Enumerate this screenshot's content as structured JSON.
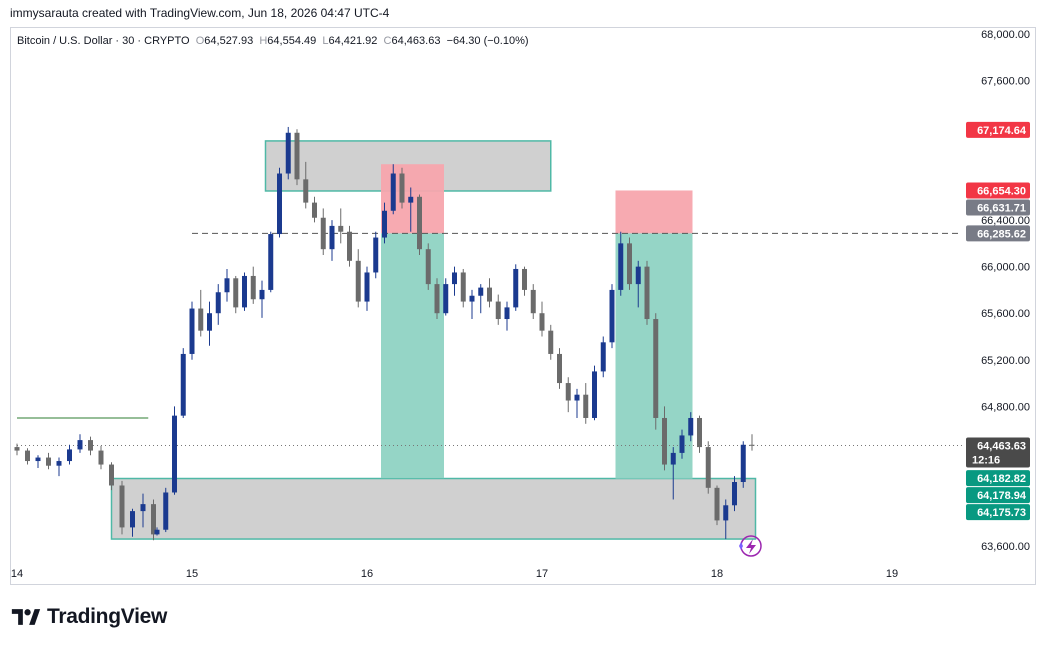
{
  "header": {
    "credit": "immysarauta created with TradingView.com, Jun 18, 2026 04:47 UTC-4"
  },
  "legend": {
    "symbol": "Bitcoin / U.S. Dollar · 30 · CRYPTO",
    "open_label": "O",
    "open": "64,527.93",
    "high_label": "H",
    "high": "64,554.49",
    "low_label": "L",
    "low": "64,421.92",
    "close_label": "C",
    "close": "64,463.63",
    "change": "−64.30 (−0.10%)"
  },
  "brand": {
    "name": "TradingView",
    "logo_icon": "tradingview-logo-icon"
  },
  "colors": {
    "up": "#1b3a8f",
    "down": "#6b6b6b",
    "zone_fill": "#c8c8c8",
    "zone_border": "#4fb8a6",
    "target_fill": "#8fd3c3",
    "stop_fill": "#f7a5ad",
    "red_tag": "#f23645",
    "gray_tag": "#787b86",
    "green_tag": "#089981",
    "dark_tag": "#4a4a4a"
  },
  "chart_data": {
    "type": "candlestick",
    "title": "Bitcoin / U.S. Dollar · 30 · CRYPTO",
    "ylim": [
      63480,
      68050
    ],
    "xlim": [
      14.0,
      19.8
    ],
    "y_ticks": [
      "68,000.00",
      "67,600.00",
      "66,400.00",
      "66,000.00",
      "65,600.00",
      "65,200.00",
      "64,800.00",
      "63,600.00"
    ],
    "y_tick_values": [
      68000,
      67600,
      66400,
      66000,
      65600,
      65200,
      64800,
      63600
    ],
    "x_ticks": [
      "14",
      "15",
      "16",
      "17",
      "18",
      "19"
    ],
    "x_tick_values": [
      14,
      15,
      16,
      17,
      18,
      19
    ],
    "price_tags": [
      {
        "label": "67,174.64",
        "value": 67174.64,
        "color": "red"
      },
      {
        "label": "66,654.30",
        "value": 66654.3,
        "color": "red"
      },
      {
        "label": "66,631.71",
        "value": 66631.71,
        "color": "gray"
      },
      {
        "label": "66,285.62",
        "value": 66285.62,
        "color": "gray"
      },
      {
        "label": "64,463.63",
        "sublabel": "12:16",
        "value": 64463.63,
        "color": "dark"
      },
      {
        "label": "64,182.82",
        "value": 64182.82,
        "color": "green"
      },
      {
        "label": "64,178.94",
        "value": 64178.94,
        "color": "green"
      },
      {
        "label": "64,175.73",
        "value": 64175.73,
        "color": "green"
      }
    ],
    "horizontal_lines": [
      {
        "value": 66285.62,
        "from_x": 15.0,
        "to_x": 19.5,
        "style": "dashed"
      },
      {
        "value": 64463.63,
        "from_x": 14.0,
        "to_x": 19.8,
        "style": "dotted"
      },
      {
        "value": 64700,
        "from_x": 14.0,
        "to_x": 14.75,
        "style": "solid"
      }
    ],
    "zones": [
      {
        "kind": "supply",
        "x0": 15.42,
        "x1": 17.05,
        "y0": 66650,
        "y1": 67080
      },
      {
        "kind": "demand",
        "x0": 14.54,
        "x1": 18.22,
        "y0": 63660,
        "y1": 64180
      }
    ],
    "positions": [
      {
        "kind": "short",
        "x0": 16.08,
        "x1": 16.44,
        "entry": 66285.62,
        "stop": 66880,
        "target": 64182.82
      },
      {
        "kind": "short",
        "x0": 17.42,
        "x1": 17.86,
        "entry": 66285.62,
        "stop": 66654.3,
        "target": 64178.94
      }
    ],
    "candles": [
      [
        14.0,
        64450,
        64480,
        64380,
        64420
      ],
      [
        14.06,
        64420,
        64440,
        64300,
        64330
      ],
      [
        14.12,
        64330,
        64380,
        64270,
        64360
      ],
      [
        14.18,
        64360,
        64400,
        64260,
        64290
      ],
      [
        14.24,
        64290,
        64360,
        64200,
        64330
      ],
      [
        14.3,
        64330,
        64470,
        64300,
        64430
      ],
      [
        14.36,
        64430,
        64560,
        64400,
        64510
      ],
      [
        14.42,
        64510,
        64540,
        64380,
        64420
      ],
      [
        14.48,
        64420,
        64460,
        64260,
        64300
      ],
      [
        14.54,
        64300,
        64320,
        64080,
        64120
      ],
      [
        14.6,
        64120,
        64160,
        63700,
        63760
      ],
      [
        14.66,
        63760,
        63920,
        63680,
        63900
      ],
      [
        14.72,
        63900,
        64050,
        63760,
        63960
      ],
      [
        14.78,
        63960,
        64000,
        63650,
        63700
      ],
      [
        14.8,
        63700,
        63760,
        63690,
        63740
      ],
      [
        14.85,
        63740,
        64100,
        63720,
        64060
      ],
      [
        14.9,
        64060,
        64800,
        64040,
        64720
      ],
      [
        14.95,
        64720,
        65300,
        64700,
        65250
      ],
      [
        15.0,
        65250,
        65700,
        65200,
        65640
      ],
      [
        15.05,
        65640,
        65800,
        65400,
        65450
      ],
      [
        15.1,
        65450,
        65700,
        65320,
        65600
      ],
      [
        15.15,
        65600,
        65850,
        65500,
        65780
      ],
      [
        15.2,
        65780,
        65980,
        65700,
        65900
      ],
      [
        15.25,
        65900,
        65920,
        65600,
        65650
      ],
      [
        15.3,
        65650,
        65950,
        65620,
        65920
      ],
      [
        15.35,
        65920,
        66000,
        65680,
        65720
      ],
      [
        15.4,
        65720,
        65880,
        65560,
        65800
      ],
      [
        15.45,
        65800,
        66300,
        65780,
        66280
      ],
      [
        15.5,
        66280,
        66850,
        66250,
        66800
      ],
      [
        15.55,
        66800,
        67200,
        66750,
        67150
      ],
      [
        15.6,
        67150,
        67180,
        66700,
        66750
      ],
      [
        15.65,
        66750,
        66900,
        66500,
        66550
      ],
      [
        15.7,
        66550,
        66600,
        66380,
        66420
      ],
      [
        15.75,
        66420,
        66500,
        66100,
        66150
      ],
      [
        15.8,
        66150,
        66400,
        66050,
        66350
      ],
      [
        15.85,
        66350,
        66500,
        66200,
        66300
      ],
      [
        15.9,
        66300,
        66350,
        66000,
        66050
      ],
      [
        15.95,
        66050,
        66150,
        65650,
        65700
      ],
      [
        16.0,
        65700,
        66000,
        65620,
        65950
      ],
      [
        16.05,
        65950,
        66300,
        65900,
        66250
      ],
      [
        16.1,
        66250,
        66550,
        66200,
        66480
      ],
      [
        16.15,
        66480,
        66880,
        66450,
        66800
      ],
      [
        16.2,
        66800,
        66850,
        66500,
        66550
      ],
      [
        16.25,
        66550,
        66680,
        66300,
        66600
      ],
      [
        16.3,
        66600,
        66620,
        66100,
        66150
      ],
      [
        16.35,
        66150,
        66200,
        65800,
        65850
      ],
      [
        16.4,
        65850,
        65900,
        65550,
        65600
      ],
      [
        16.45,
        65600,
        65900,
        65580,
        65850
      ],
      [
        16.5,
        65850,
        66000,
        65750,
        65950
      ],
      [
        16.55,
        65950,
        65980,
        65650,
        65700
      ],
      [
        16.6,
        65700,
        65800,
        65550,
        65750
      ],
      [
        16.65,
        65750,
        65850,
        65600,
        65820
      ],
      [
        16.7,
        65820,
        65900,
        65650,
        65700
      ],
      [
        16.75,
        65700,
        65760,
        65500,
        65550
      ],
      [
        16.8,
        65550,
        65700,
        65450,
        65650
      ],
      [
        16.85,
        65650,
        66020,
        65620,
        65980
      ],
      [
        16.9,
        65980,
        66000,
        65750,
        65800
      ],
      [
        16.95,
        65800,
        65850,
        65550,
        65600
      ],
      [
        17.0,
        65600,
        65700,
        65400,
        65450
      ],
      [
        17.05,
        65450,
        65500,
        65200,
        65250
      ],
      [
        17.1,
        65250,
        65300,
        64950,
        65000
      ],
      [
        17.15,
        65000,
        65050,
        64750,
        64850
      ],
      [
        17.2,
        64850,
        64950,
        64700,
        64900
      ],
      [
        17.25,
        64900,
        65000,
        64650,
        64700
      ],
      [
        17.3,
        64700,
        65150,
        64680,
        65100
      ],
      [
        17.35,
        65100,
        65400,
        65050,
        65350
      ],
      [
        17.4,
        65350,
        65850,
        65300,
        65800
      ],
      [
        17.45,
        65800,
        66300,
        65750,
        66200
      ],
      [
        17.5,
        66200,
        66250,
        65800,
        65850
      ],
      [
        17.55,
        65850,
        66050,
        65650,
        66000
      ],
      [
        17.6,
        66000,
        66050,
        65500,
        65550
      ],
      [
        17.65,
        65550,
        65600,
        64600,
        64700
      ],
      [
        17.7,
        64700,
        64800,
        64250,
        64300
      ],
      [
        17.75,
        64300,
        64450,
        64000,
        64400
      ],
      [
        17.8,
        64400,
        64600,
        64350,
        64550
      ],
      [
        17.85,
        64550,
        64750,
        64500,
        64700
      ],
      [
        17.9,
        64700,
        64720,
        64400,
        64450
      ],
      [
        17.95,
        64450,
        64500,
        64050,
        64100
      ],
      [
        18.0,
        64100,
        64120,
        63780,
        63820
      ],
      [
        18.05,
        63820,
        64000,
        63660,
        63950
      ],
      [
        18.1,
        63950,
        64200,
        63900,
        64150
      ],
      [
        18.15,
        64150,
        64500,
        64100,
        64470
      ],
      [
        18.2,
        64470,
        64560,
        64420,
        64464
      ]
    ]
  }
}
